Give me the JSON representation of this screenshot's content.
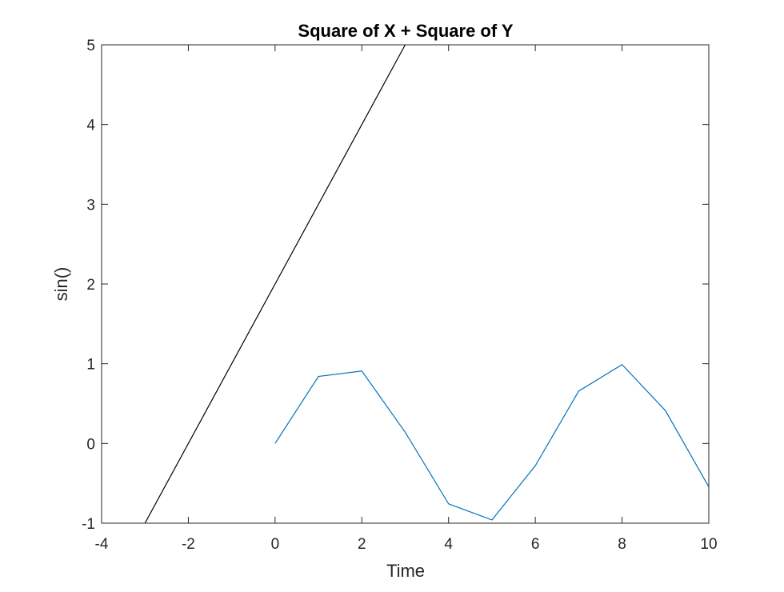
{
  "chart_data": {
    "type": "line",
    "title": "Square of X + Square of Y",
    "xlabel": "Time",
    "ylabel": "sin()",
    "xlim": [
      -4,
      10
    ],
    "ylim": [
      -1,
      5
    ],
    "xticks": [
      "-4",
      "-2",
      "0",
      "2",
      "4",
      "6",
      "8",
      "10"
    ],
    "yticks": [
      "-1",
      "0",
      "1",
      "2",
      "3",
      "4",
      "5"
    ],
    "grid": false,
    "legend": "none",
    "series": [
      {
        "color": "#0072BD",
        "x": [
          0,
          1,
          2,
          3,
          4,
          5,
          6,
          7,
          8,
          9,
          10
        ],
        "y": [
          0,
          0.841,
          0.909,
          0.141,
          -0.757,
          -0.959,
          -0.279,
          0.657,
          0.989,
          0.412,
          -0.544
        ]
      },
      {
        "color": "#000000",
        "x": [
          -3,
          3
        ],
        "y": [
          -1,
          5
        ]
      }
    ]
  }
}
